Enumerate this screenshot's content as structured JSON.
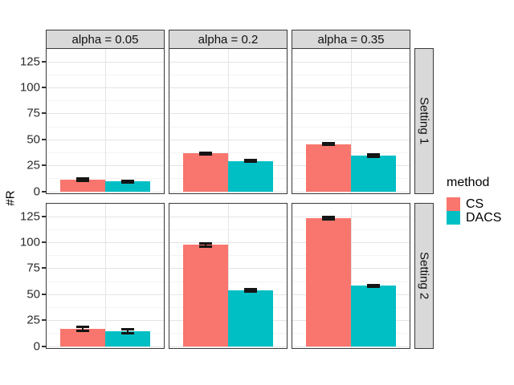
{
  "chart_data": {
    "type": "bar",
    "title": "",
    "xlabel": "",
    "ylabel": "#R",
    "y_ticks": [
      0,
      25,
      50,
      75,
      100,
      125
    ],
    "y_minor_ticks": [
      12.5,
      37.5,
      62.5,
      87.5,
      112.5
    ],
    "ylim": [
      -1.8,
      137
    ],
    "grid": "on",
    "facet_cols": [
      "alpha = 0.05",
      "alpha = 0.2",
      "alpha = 0.35"
    ],
    "facet_rows": [
      "Setting 1",
      "Setting 2"
    ],
    "legend": {
      "title": "method",
      "position": "right",
      "entries": [
        {
          "label": "CS",
          "color": "#F8766D"
        },
        {
          "label": "DACS",
          "color": "#00BFC4"
        }
      ]
    },
    "panels": [
      {
        "facet_row": "Setting 1",
        "facet_col": "alpha = 0.05",
        "bars": [
          {
            "method": "CS",
            "value": 11.2,
            "err_low": 10.1,
            "err_high": 12.3
          },
          {
            "method": "DACS",
            "value": 9.6,
            "err_low": 8.8,
            "err_high": 10.4
          }
        ]
      },
      {
        "facet_row": "Setting 1",
        "facet_col": "alpha = 0.2",
        "bars": [
          {
            "method": "CS",
            "value": 36.6,
            "err_low": 35.8,
            "err_high": 37.4
          },
          {
            "method": "DACS",
            "value": 29.4,
            "err_low": 28.4,
            "err_high": 30.4
          }
        ]
      },
      {
        "facet_row": "Setting 1",
        "facet_col": "alpha = 0.35",
        "bars": [
          {
            "method": "CS",
            "value": 45.3,
            "err_low": 44.5,
            "err_high": 46.1
          },
          {
            "method": "DACS",
            "value": 34.6,
            "err_low": 33.5,
            "err_high": 35.7
          }
        ]
      },
      {
        "facet_row": "Setting 2",
        "facet_col": "alpha = 0.05",
        "bars": [
          {
            "method": "CS",
            "value": 16.8,
            "err_low": 14.8,
            "err_high": 18.8
          },
          {
            "method": "DACS",
            "value": 14.6,
            "err_low": 12.8,
            "err_high": 16.4
          }
        ]
      },
      {
        "facet_row": "Setting 2",
        "facet_col": "alpha = 0.2",
        "bars": [
          {
            "method": "CS",
            "value": 97.5,
            "err_low": 95.8,
            "err_high": 99.2
          },
          {
            "method": "DACS",
            "value": 53.5,
            "err_low": 52.5,
            "err_high": 54.8
          }
        ]
      },
      {
        "facet_row": "Setting 2",
        "facet_col": "alpha = 0.35",
        "bars": [
          {
            "method": "CS",
            "value": 123.0,
            "err_low": 122.0,
            "err_high": 124.0
          },
          {
            "method": "DACS",
            "value": 58.0,
            "err_low": 57.0,
            "err_high": 59.0
          }
        ]
      }
    ]
  }
}
